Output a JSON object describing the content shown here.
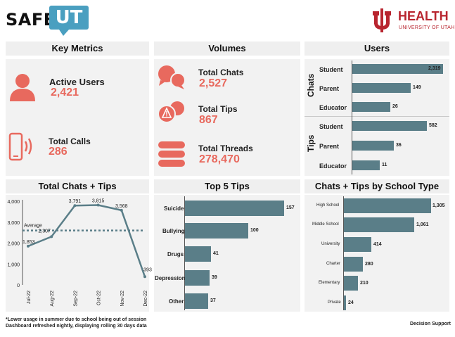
{
  "header": {
    "logo_safe": "SAFE",
    "logo_ut": "UT",
    "uh_title": "HEALTH",
    "uh_subtitle": "UNIVERSITY OF UTAH"
  },
  "key_metrics": {
    "title": "Key Metrics",
    "active_users_label": "Active Users",
    "active_users_value": "2,421",
    "total_calls_label": "Total Calls",
    "total_calls_value": "286"
  },
  "volumes": {
    "title": "Volumes",
    "total_chats_label": "Total Chats",
    "total_chats_value": "2,527",
    "total_tips_label": "Total Tips",
    "total_tips_value": "867",
    "total_threads_label": "Total Threads",
    "total_threads_value": "278,470"
  },
  "users": {
    "title": "Users",
    "chats_group_label": "Chats",
    "tips_group_label": "Tips",
    "chats": [
      {
        "label": "Student",
        "value": 2319,
        "display": "2,319"
      },
      {
        "label": "Parent",
        "value": 149,
        "display": "149"
      },
      {
        "label": "Educator",
        "value": 26,
        "display": "26"
      }
    ],
    "tips": [
      {
        "label": "Student",
        "value": 582,
        "display": "582"
      },
      {
        "label": "Parent",
        "value": 36,
        "display": "36"
      },
      {
        "label": "Educator",
        "value": 11,
        "display": "11"
      }
    ]
  },
  "total_chats_tips": {
    "title": "Total Chats + Tips",
    "average_label": "Average",
    "average_value": 2600
  },
  "top5_tips": {
    "title": "Top 5 Tips",
    "items": [
      {
        "label": "Suicide",
        "value": 157
      },
      {
        "label": "Bullying",
        "value": 100
      },
      {
        "label": "Drugs",
        "value": 41
      },
      {
        "label": "Depression",
        "value": 39
      },
      {
        "label": "Other",
        "value": 37
      }
    ]
  },
  "school_type": {
    "title": "Chats + Tips by School Type",
    "items": [
      {
        "label": "High School",
        "value": 1305,
        "display": "1,305"
      },
      {
        "label": "Middle School",
        "value": 1061,
        "display": "1,061"
      },
      {
        "label": "University",
        "value": 414,
        "display": "414"
      },
      {
        "label": "Charter",
        "value": 280,
        "display": "280"
      },
      {
        "label": "Elementary",
        "value": 210,
        "display": "210"
      },
      {
        "label": "Private",
        "value": 24,
        "display": "24"
      }
    ]
  },
  "chart_data": {
    "type": "line",
    "title": "Total Chats + Tips",
    "categories": [
      "Jul-22",
      "Aug-22",
      "Sep-22",
      "Oct-22",
      "Nov-22",
      "Dec-22"
    ],
    "values": [
      1853,
      2307,
      3791,
      3815,
      3568,
      393
    ],
    "labels": [
      "1,853",
      "2,307",
      "3,791",
      "3,815",
      "3,568",
      "393"
    ],
    "yticks": [
      "0",
      "1,000",
      "2,000",
      "3,000",
      "4,000"
    ],
    "ylim": [
      0,
      4000
    ],
    "reference_line": {
      "label": "Average",
      "value": 2600
    },
    "xlabel": "",
    "ylabel": ""
  },
  "footer": {
    "note1": "*Lower usage in summer due to school being out of session",
    "note2": "Dashboard refreshed nightly, displaying rolling 30 days data",
    "credit": "Decision Support"
  },
  "colors": {
    "accent": "#e8695e",
    "bar": "#5a7e88",
    "panel": "#f2f2f2",
    "brand_blue": "#4a9fc0",
    "brand_red": "#b8252f"
  }
}
